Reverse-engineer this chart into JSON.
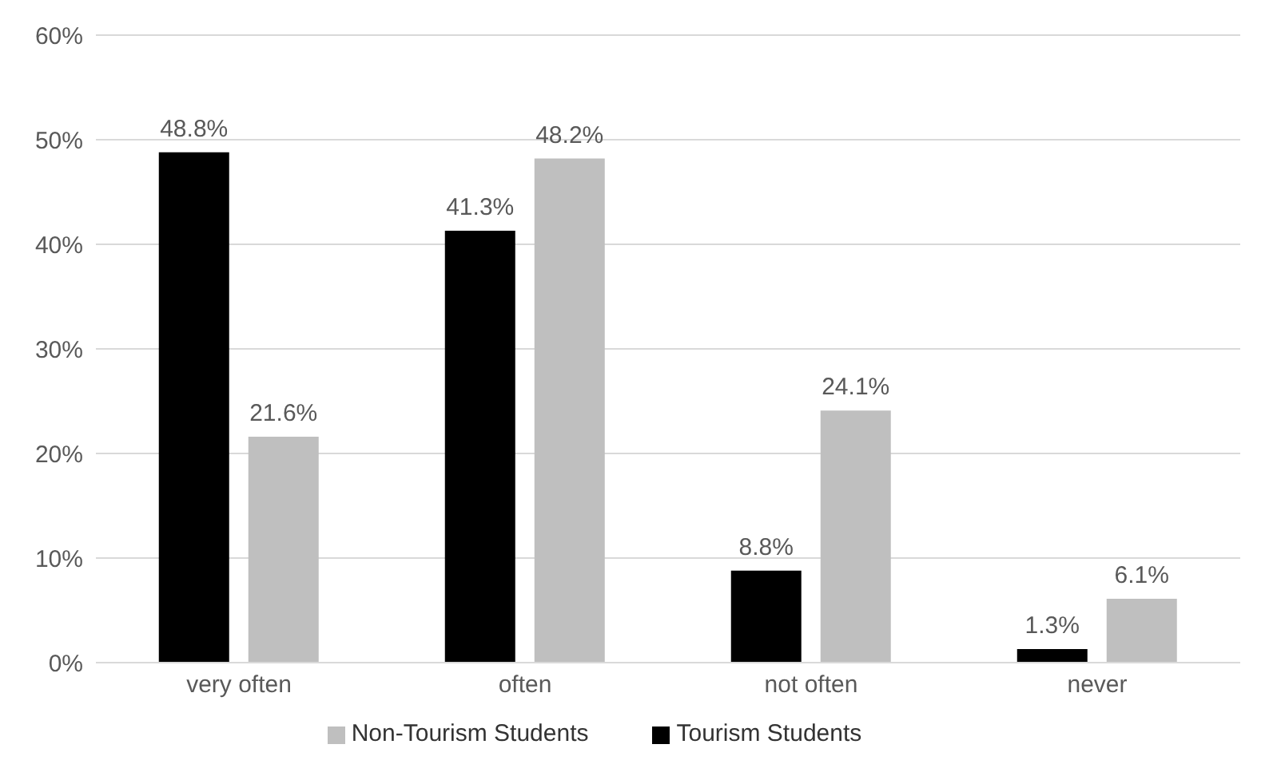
{
  "chart_data": {
    "type": "bar",
    "categories": [
      "very often",
      "often",
      "not often",
      "never"
    ],
    "series": [
      {
        "name": "Tourism Students",
        "color": "#000000",
        "values": [
          48.8,
          41.3,
          8.8,
          1.3
        ],
        "value_labels": [
          "48.8%",
          "41.3%",
          "8.8%",
          "1.3%"
        ]
      },
      {
        "name": "Non-Tourism Students",
        "color": "#bfbfbf",
        "values": [
          21.6,
          48.2,
          24.1,
          6.1
        ],
        "value_labels": [
          "21.6%",
          "48.2%",
          "24.1%",
          "6.1%"
        ]
      }
    ],
    "ylim": [
      0,
      60
    ],
    "yticks": [
      {
        "value": 0,
        "label": "0%"
      },
      {
        "value": 10,
        "label": "10%"
      },
      {
        "value": 20,
        "label": "20%"
      },
      {
        "value": 30,
        "label": "30%"
      },
      {
        "value": 40,
        "label": "40%"
      },
      {
        "value": 50,
        "label": "50%"
      },
      {
        "value": 60,
        "label": "60%"
      }
    ],
    "grid": "y",
    "legend": "bottom"
  }
}
